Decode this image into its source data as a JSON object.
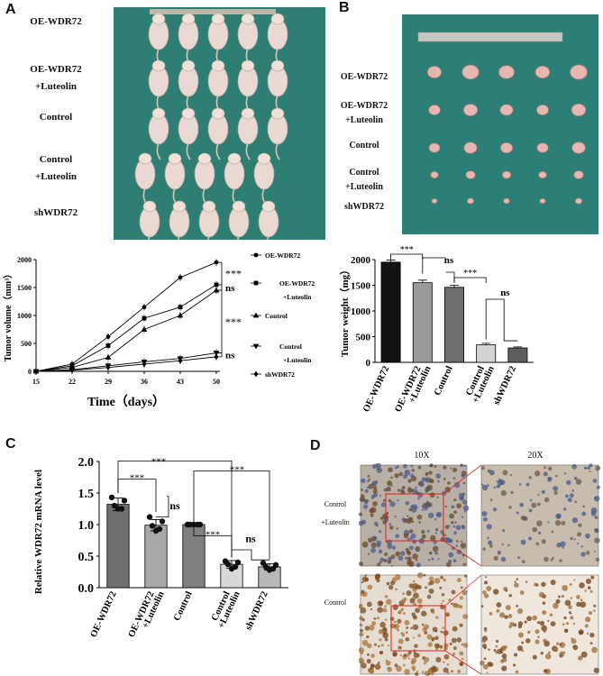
{
  "panels": {
    "a": "A",
    "b": "B",
    "c": "C",
    "d": "D"
  },
  "mice": {
    "rows": [
      "OE-WDR72",
      "OE-WDR72\n+Luteolin",
      "Control",
      "Control\n+Luteolin",
      "shWDR72"
    ],
    "bg": "#2f7e73"
  },
  "tumors": {
    "rows": [
      "OE-WDR72",
      "OE-WDR72\n+Luteolin",
      "Control",
      "Control\n+Luteolin",
      "shWDR72"
    ],
    "bg": "#2c7f77"
  },
  "chart_data": [
    {
      "id": "A-line",
      "type": "line",
      "xlabel": "Time（days）",
      "ylabel": "Tumor volume（mm³）",
      "x": [
        15,
        22,
        29,
        36,
        43,
        50
      ],
      "ylim": [
        0,
        2000
      ],
      "yticks": [
        0,
        500,
        1000,
        1500,
        2000
      ],
      "series": [
        {
          "name": "OE-WDR72",
          "marker": "circle",
          "values": [
            0,
            130,
            620,
            1150,
            1680,
            1950
          ]
        },
        {
          "name": "OE-WDR72\n+Luteolin",
          "marker": "square",
          "values": [
            0,
            100,
            460,
            950,
            1150,
            1550
          ]
        },
        {
          "name": "Control",
          "marker": "triangle-up",
          "values": [
            0,
            70,
            250,
            750,
            1000,
            1450
          ]
        },
        {
          "name": "Control\n+Luteolin",
          "marker": "triangle-down",
          "values": [
            0,
            30,
            100,
            170,
            230,
            330
          ]
        },
        {
          "name": "shWDR72",
          "marker": "diamond",
          "values": [
            0,
            20,
            70,
            130,
            190,
            260
          ]
        }
      ],
      "annotations": [
        "***",
        "ns",
        "***",
        "ns"
      ]
    },
    {
      "id": "B-bar",
      "type": "bar",
      "ylabel": "Tumor weight（mg）",
      "categories": [
        "OE-WDR72",
        "OE-WDR72\n+Luteolin",
        "Control",
        "Control\n+Luteolin",
        "shWDR72"
      ],
      "values": [
        1950,
        1550,
        1460,
        340,
        280
      ],
      "errors": [
        40,
        50,
        40,
        30,
        20
      ],
      "colors": [
        "#111111",
        "#9a9a9a",
        "#6f6f6f",
        "#d3d3d3",
        "#5e5e5e"
      ],
      "ylim": [
        0,
        2000
      ],
      "yticks": [
        0,
        500,
        1000,
        1500,
        2000
      ],
      "annotations": [
        "***",
        "ns",
        "***",
        "ns"
      ]
    },
    {
      "id": "C-bar",
      "type": "bar",
      "ylabel": "Relative WDR72 mRNA level",
      "categories": [
        "OE-WDR72",
        "OE-WDR72\n+Luteolin",
        "Control",
        "Control\n+Luteolin",
        "shWDR72"
      ],
      "values": [
        1.32,
        0.99,
        1.0,
        0.37,
        0.33
      ],
      "errors": [
        0.1,
        0.09,
        0.01,
        0.06,
        0.05
      ],
      "points": [
        [
          1.43,
          1.38,
          1.3,
          1.25,
          1.25
        ],
        [
          1.12,
          1.05,
          0.98,
          0.93,
          0.9
        ],
        [
          1.0,
          1.0,
          1.0,
          1.0,
          1.0
        ],
        [
          0.42,
          0.4,
          0.37,
          0.33,
          0.3
        ],
        [
          0.39,
          0.36,
          0.33,
          0.3,
          0.28
        ]
      ],
      "colors": [
        "#6f6f6f",
        "#a9a9a9",
        "#808080",
        "#d8d8d8",
        "#b8b8b8"
      ],
      "ylim": [
        0,
        2.0
      ],
      "yticks": [
        "0.0",
        "0.5",
        "1.0",
        "1.5",
        "2.0"
      ],
      "annotations": [
        "***",
        "***",
        "***",
        "***",
        "ns",
        "ns",
        "***"
      ]
    }
  ],
  "ihc": {
    "mag1": "10X",
    "mag2": "20X",
    "row1": "Control\n+Luteolin",
    "row2": "Control"
  }
}
